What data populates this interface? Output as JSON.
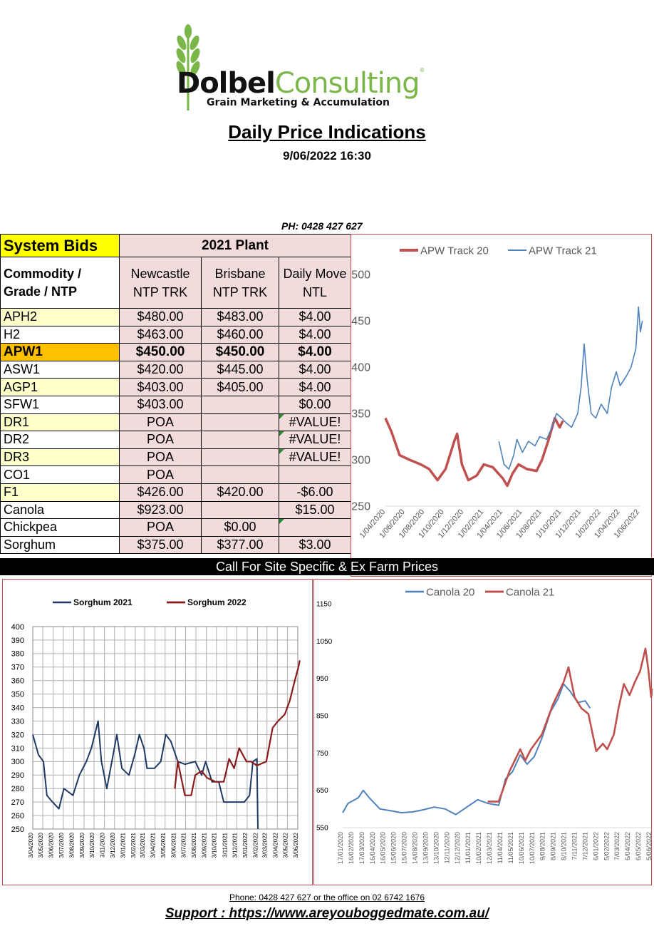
{
  "logo": {
    "brand_part1": "Dolbel",
    "brand_part2": "Consulting",
    "reg_mark": "®",
    "tagline": "Grain Marketing & Accumulation"
  },
  "title": "Daily Price Indications",
  "datetime": "9/06/2022 16:30",
  "phone_top": "PH: 0428 427 627",
  "table": {
    "system_bids": "System Bids",
    "plant": "2021 Plant",
    "col_commodity": "Commodity / Grade / NTP",
    "col_newcastle": "Newcastle NTP TRK",
    "col_brisbane": "Brisbane NTP TRK",
    "col_daily": "Daily Move NTL",
    "rows": [
      {
        "name": "APH2",
        "newcastle": "$480.00",
        "brisbane": "$483.00",
        "daily": "$4.00"
      },
      {
        "name": "H2",
        "newcastle": "$463.00",
        "brisbane": "$460.00",
        "daily": "$4.00"
      },
      {
        "name": "APW1",
        "newcastle": "$450.00",
        "brisbane": "$450.00",
        "daily": "$4.00"
      },
      {
        "name": "ASW1",
        "newcastle": "$420.00",
        "brisbane": "$445.00",
        "daily": "$4.00"
      },
      {
        "name": "AGP1",
        "newcastle": "$403.00",
        "brisbane": "$405.00",
        "daily": "$4.00"
      },
      {
        "name": "SFW1",
        "newcastle": "$403.00",
        "brisbane": "",
        "daily": "$0.00"
      },
      {
        "name": "DR1",
        "newcastle": "POA",
        "brisbane": "",
        "daily": "#VALUE!"
      },
      {
        "name": "DR2",
        "newcastle": "POA",
        "brisbane": "",
        "daily": "#VALUE!"
      },
      {
        "name": "DR3",
        "newcastle": "POA",
        "brisbane": "",
        "daily": "#VALUE!"
      },
      {
        "name": "CO1",
        "newcastle": "POA",
        "brisbane": "",
        "daily": ""
      },
      {
        "name": "F1",
        "newcastle": "$426.00",
        "brisbane": "$420.00",
        "daily": "-$6.00"
      },
      {
        "name": "Canola",
        "newcastle": "$923.00",
        "brisbane": "",
        "daily": "$15.00"
      },
      {
        "name": "Chickpea",
        "newcastle": "POA",
        "brisbane": "$0.00",
        "daily": ""
      },
      {
        "name": "Sorghum",
        "newcastle": "$375.00",
        "brisbane": "$377.00",
        "daily": "$3.00"
      }
    ]
  },
  "banner": "Call For Site Specific & Ex Farm Prices",
  "colors": {
    "red": "#c0504d",
    "blue": "#4f81bd",
    "navy": "#1f3864",
    "maroon": "#8b1a1a",
    "highlight": "#ffc000",
    "yellow": "#ffff00",
    "pink": "#f2dcdb",
    "cell_yellow": "#ffffcc"
  },
  "chart_data": [
    {
      "type": "line",
      "series": [
        {
          "name": "APW Track 20",
          "points": [
            [
              "2020-04-01",
              345
            ],
            [
              "2020-04-20",
              330
            ],
            [
              "2020-05-15",
              305
            ],
            [
              "2020-06-15",
              300
            ],
            [
              "2020-07-20",
              295
            ],
            [
              "2020-08-15",
              290
            ],
            [
              "2020-09-10",
              278
            ],
            [
              "2020-10-05",
              290
            ],
            [
              "2020-11-01",
              320
            ],
            [
              "2020-11-10",
              328
            ],
            [
              "2020-11-25",
              295
            ],
            [
              "2020-12-15",
              278
            ],
            [
              "2021-01-10",
              283
            ],
            [
              "2021-02-01",
              295
            ],
            [
              "2021-03-01",
              292
            ],
            [
              "2021-04-01",
              280
            ],
            [
              "2021-04-15",
              272
            ],
            [
              "2021-05-01",
              285
            ],
            [
              "2021-05-20",
              295
            ],
            [
              "2021-06-15",
              290
            ],
            [
              "2021-07-15",
              288
            ],
            [
              "2021-08-01",
              300
            ],
            [
              "2021-08-20",
              320
            ],
            [
              "2021-09-10",
              345
            ],
            [
              "2021-09-25",
              335
            ],
            [
              "2021-10-05",
              342
            ]
          ]
        },
        {
          "name": "APW Track 21",
          "points": [
            [
              "2021-03-20",
              320
            ],
            [
              "2021-04-05",
              295
            ],
            [
              "2021-04-20",
              290
            ],
            [
              "2021-05-05",
              305
            ],
            [
              "2021-05-15",
              322
            ],
            [
              "2021-06-01",
              308
            ],
            [
              "2021-06-20",
              320
            ],
            [
              "2021-07-10",
              315
            ],
            [
              "2021-07-25",
              325
            ],
            [
              "2021-08-15",
              322
            ],
            [
              "2021-09-01",
              335
            ],
            [
              "2021-09-15",
              350
            ],
            [
              "2021-10-01",
              345
            ],
            [
              "2021-10-15",
              340
            ],
            [
              "2021-11-01",
              335
            ],
            [
              "2021-11-20",
              350
            ],
            [
              "2021-12-01",
              380
            ],
            [
              "2021-12-10",
              425
            ],
            [
              "2021-12-20",
              385
            ],
            [
              "2022-01-01",
              350
            ],
            [
              "2022-01-15",
              345
            ],
            [
              "2022-02-01",
              360
            ],
            [
              "2022-02-20",
              350
            ],
            [
              "2022-03-05",
              378
            ],
            [
              "2022-03-20",
              395
            ],
            [
              "2022-04-01",
              380
            ],
            [
              "2022-04-20",
              390
            ],
            [
              "2022-05-05",
              400
            ],
            [
              "2022-05-20",
              420
            ],
            [
              "2022-05-28",
              465
            ],
            [
              "2022-06-03",
              438
            ],
            [
              "2022-06-09",
              450
            ]
          ]
        }
      ],
      "xlabels": [
        "1/04/2020",
        "1/06/2020",
        "1/08/2020",
        "1/10/2020",
        "1/12/2020",
        "1/02/2021",
        "1/04/2021",
        "1/06/2021",
        "1/08/2021",
        "1/10/2021",
        "1/12/2021",
        "1/02/2022",
        "1/04/2022",
        "1/06/2022"
      ],
      "ylim": [
        250,
        500
      ],
      "yticks": [
        250,
        300,
        350,
        400,
        450,
        500
      ],
      "legend": "top",
      "grid": false
    },
    {
      "type": "line",
      "series": [
        {
          "name": "Sorghum 2021",
          "points": [
            [
              "2020-04-03",
              320
            ],
            [
              "2020-04-20",
              305
            ],
            [
              "2020-05-05",
              300
            ],
            [
              "2020-05-15",
              275
            ],
            [
              "2020-06-01",
              270
            ],
            [
              "2020-06-20",
              265
            ],
            [
              "2020-07-05",
              280
            ],
            [
              "2020-08-01",
              275
            ],
            [
              "2020-08-20",
              290
            ],
            [
              "2020-09-10",
              300
            ],
            [
              "2020-09-25",
              310
            ],
            [
              "2020-10-05",
              320
            ],
            [
              "2020-10-15",
              330
            ],
            [
              "2020-10-25",
              300
            ],
            [
              "2020-11-10",
              280
            ],
            [
              "2020-11-25",
              300
            ],
            [
              "2020-12-10",
              320
            ],
            [
              "2020-12-25",
              295
            ],
            [
              "2021-01-15",
              290
            ],
            [
              "2021-02-01",
              305
            ],
            [
              "2021-02-15",
              320
            ],
            [
              "2021-03-01",
              310
            ],
            [
              "2021-03-10",
              295
            ],
            [
              "2021-04-01",
              295
            ],
            [
              "2021-04-20",
              300
            ],
            [
              "2021-05-05",
              320
            ],
            [
              "2021-05-20",
              315
            ],
            [
              "2021-06-10",
              300
            ],
            [
              "2021-07-01",
              298
            ],
            [
              "2021-08-01",
              300
            ],
            [
              "2021-08-20",
              290
            ],
            [
              "2021-09-01",
              300
            ],
            [
              "2021-09-20",
              285
            ],
            [
              "2021-10-10",
              285
            ],
            [
              "2021-10-25",
              270
            ],
            [
              "2021-12-01",
              270
            ],
            [
              "2021-12-25",
              270
            ],
            [
              "2022-01-10",
              275
            ],
            [
              "2022-01-20",
              300
            ],
            [
              "2022-02-01",
              302
            ],
            [
              "2022-02-04",
              250
            ]
          ]
        },
        {
          "name": "Sorghum 2022",
          "points": [
            [
              "2021-06-01",
              280
            ],
            [
              "2021-06-10",
              300
            ],
            [
              "2021-07-01",
              275
            ],
            [
              "2021-07-20",
              275
            ],
            [
              "2021-08-01",
              290
            ],
            [
              "2021-08-20",
              293
            ],
            [
              "2021-09-05",
              288
            ],
            [
              "2021-10-01",
              285
            ],
            [
              "2021-10-25",
              285
            ],
            [
              "2021-11-10",
              302
            ],
            [
              "2021-11-25",
              295
            ],
            [
              "2021-12-10",
              310
            ],
            [
              "2022-01-01",
              300
            ],
            [
              "2022-01-15",
              300
            ],
            [
              "2022-02-01",
              297
            ],
            [
              "2022-03-01",
              300
            ],
            [
              "2022-03-20",
              325
            ],
            [
              "2022-04-05",
              330
            ],
            [
              "2022-04-25",
              335
            ],
            [
              "2022-05-10",
              345
            ],
            [
              "2022-05-25",
              360
            ],
            [
              "2022-06-05",
              370
            ],
            [
              "2022-06-09",
              375
            ]
          ]
        }
      ],
      "xlabels": [
        "3/04/2020",
        "3/05/2020",
        "3/06/2020",
        "3/07/2020",
        "3/08/2020",
        "3/09/2020",
        "3/10/2020",
        "3/11/2020",
        "3/12/2020",
        "3/01/2021",
        "3/02/2021",
        "3/03/2021",
        "3/04/2021",
        "3/05/2021",
        "3/06/2021",
        "3/07/2021",
        "3/08/2021",
        "3/09/2021",
        "3/10/2021",
        "3/11/2021",
        "3/12/2021",
        "3/01/2022",
        "3/02/2022",
        "3/03/2022",
        "3/04/2022",
        "3/05/2022",
        "3/06/2022"
      ],
      "ylim": [
        250,
        400
      ],
      "yticks": [
        250,
        260,
        270,
        280,
        290,
        300,
        310,
        320,
        330,
        340,
        350,
        360,
        370,
        380,
        390,
        400
      ],
      "legend": "top",
      "grid": true
    },
    {
      "type": "line",
      "series": [
        {
          "name": "Canola 20",
          "points": [
            [
              "2020-01-17",
              590
            ],
            [
              "2020-02-01",
              615
            ],
            [
              "2020-03-01",
              630
            ],
            [
              "2020-03-15",
              650
            ],
            [
              "2020-04-01",
              630
            ],
            [
              "2020-05-01",
              600
            ],
            [
              "2020-06-01",
              595
            ],
            [
              "2020-07-01",
              590
            ],
            [
              "2020-08-01",
              592
            ],
            [
              "2020-09-01",
              598
            ],
            [
              "2020-10-01",
              605
            ],
            [
              "2020-11-01",
              600
            ],
            [
              "2020-12-01",
              585
            ],
            [
              "2021-01-01",
              605
            ],
            [
              "2021-02-01",
              625
            ],
            [
              "2021-03-01",
              615
            ],
            [
              "2021-04-01",
              610
            ],
            [
              "2021-04-20",
              680
            ],
            [
              "2021-05-10",
              700
            ],
            [
              "2021-06-01",
              745
            ],
            [
              "2021-06-20",
              720
            ],
            [
              "2021-07-10",
              740
            ],
            [
              "2021-08-01",
              790
            ],
            [
              "2021-08-25",
              860
            ],
            [
              "2021-09-15",
              895
            ],
            [
              "2021-10-01",
              935
            ],
            [
              "2021-10-20",
              915
            ],
            [
              "2021-11-10",
              885
            ],
            [
              "2021-12-01",
              890
            ],
            [
              "2021-12-15",
              870
            ]
          ]
        },
        {
          "name": "Canola 21",
          "points": [
            [
              "2021-03-01",
              620
            ],
            [
              "2021-04-01",
              620
            ],
            [
              "2021-05-01",
              700
            ],
            [
              "2021-06-01",
              760
            ],
            [
              "2021-06-15",
              730
            ],
            [
              "2021-07-01",
              760
            ],
            [
              "2021-08-01",
              800
            ],
            [
              "2021-09-01",
              880
            ],
            [
              "2021-10-01",
              940
            ],
            [
              "2021-10-15",
              980
            ],
            [
              "2021-11-01",
              900
            ],
            [
              "2021-11-20",
              870
            ],
            [
              "2021-12-10",
              855
            ],
            [
              "2022-01-01",
              755
            ],
            [
              "2022-01-20",
              775
            ],
            [
              "2022-02-01",
              760
            ],
            [
              "2022-02-20",
              800
            ],
            [
              "2022-03-05",
              870
            ],
            [
              "2022-03-20",
              935
            ],
            [
              "2022-04-05",
              905
            ],
            [
              "2022-04-20",
              940
            ],
            [
              "2022-05-05",
              970
            ],
            [
              "2022-05-20",
              1030
            ],
            [
              "2022-05-28",
              975
            ],
            [
              "2022-06-05",
              900
            ],
            [
              "2022-06-09",
              923
            ]
          ]
        }
      ],
      "xlabels": [
        "17/01/2020",
        "16/02/2020",
        "17/03/2020",
        "16/04/2020",
        "16/05/2020",
        "15/06/2020",
        "15/07/2020",
        "14/08/2020",
        "13/09/2020",
        "13/10/2020",
        "12/11/2020",
        "12/12/2020",
        "11/01/2021",
        "10/02/2021",
        "12/03/2021",
        "11/04/2021",
        "11/05/2021",
        "10/06/2021",
        "10/07/2021",
        "9/08/2021",
        "8/09/2021",
        "8/10/2021",
        "7/11/2021",
        "7/12/2021",
        "6/01/2022",
        "5/02/2022",
        "7/03/2022",
        "6/04/2022",
        "6/05/2022",
        "5/06/2022"
      ],
      "ylim": [
        550,
        1150
      ],
      "yticks": [
        550,
        650,
        750,
        850,
        950,
        1050,
        1150
      ],
      "legend": "top",
      "grid": false
    }
  ],
  "footer": {
    "phone": "Phone: 0428 427 627 or the office on 02 6742 1676",
    "support": "Support : https://www.areyouboggedmate.com.au/"
  }
}
